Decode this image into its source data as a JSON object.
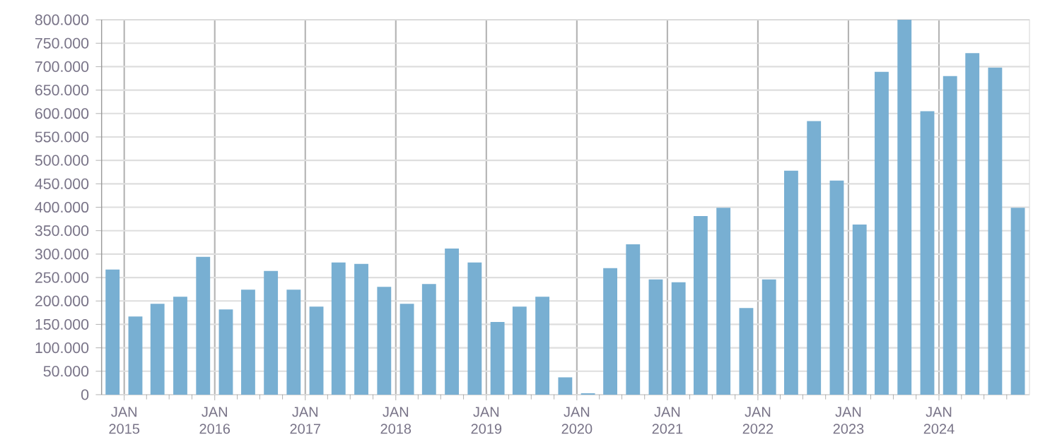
{
  "chart_data": {
    "type": "bar",
    "color": "#78afd2",
    "x": [
      "2014-11-15",
      "2015-02-15",
      "2015-05-15",
      "2015-08-15",
      "2015-11-15",
      "2016-02-15",
      "2016-05-15",
      "2016-08-15",
      "2016-11-15",
      "2017-02-15",
      "2017-05-15",
      "2017-08-15",
      "2017-11-15",
      "2018-02-15",
      "2018-05-15",
      "2018-08-15",
      "2018-11-15",
      "2019-02-15",
      "2019-05-15",
      "2019-08-15",
      "2019-11-15",
      "2020-02-15",
      "2020-05-15",
      "2020-08-15",
      "2020-11-15",
      "2021-02-15",
      "2021-05-15",
      "2021-08-15",
      "2021-11-15",
      "2022-02-15",
      "2022-05-15",
      "2022-08-15",
      "2022-11-15",
      "2023-02-15",
      "2023-05-15",
      "2023-08-15",
      "2023-11-15",
      "2024-02-15",
      "2024-05-15",
      "2024-08-15",
      "2024-11-15"
    ],
    "values": [
      267000,
      167000,
      194000,
      209000,
      294000,
      182000,
      224000,
      264000,
      224000,
      188000,
      282000,
      279000,
      230000,
      194000,
      236000,
      312000,
      282000,
      155000,
      188000,
      209000,
      37000,
      3000,
      270000,
      321000,
      246000,
      240000,
      381000,
      399000,
      185000,
      246000,
      478000,
      584000,
      457000,
      363000,
      689000,
      800000,
      605000,
      680000,
      729000,
      698000,
      399000
    ],
    "xlim": [
      "2014-10-01",
      "2025-01-01"
    ],
    "xticks": [
      {
        "value": "2015-01-01",
        "label": "JAN 2015"
      },
      {
        "value": "2016-01-01",
        "label": "JAN 2016"
      },
      {
        "value": "2017-01-01",
        "label": "JAN 2017"
      },
      {
        "value": "2018-01-01",
        "label": "JAN 2018"
      },
      {
        "value": "2019-01-01",
        "label": "JAN 2019"
      },
      {
        "value": "2020-01-01",
        "label": "JAN 2020"
      },
      {
        "value": "2021-01-01",
        "label": "JAN 2021"
      },
      {
        "value": "2022-01-01",
        "label": "JAN 2022"
      },
      {
        "value": "2023-01-01",
        "label": "JAN 2023"
      },
      {
        "value": "2024-01-01",
        "label": "JAN 2024"
      },
      {
        "value": "2015-04-01",
        "label": null
      },
      {
        "value": "2015-07-01",
        "label": null
      },
      {
        "value": "2015-10-01",
        "label": null
      },
      {
        "value": "2016-04-01",
        "label": null
      },
      {
        "value": "2016-07-01",
        "label": null
      },
      {
        "value": "2016-10-01",
        "label": null
      },
      {
        "value": "2017-04-01",
        "label": null
      },
      {
        "value": "2017-07-01",
        "label": null
      },
      {
        "value": "2017-10-01",
        "label": null
      },
      {
        "value": "2018-04-01",
        "label": null
      },
      {
        "value": "2018-07-01",
        "label": null
      },
      {
        "value": "2018-10-01",
        "label": null
      },
      {
        "value": "2019-04-01",
        "label": null
      },
      {
        "value": "2019-07-01",
        "label": null
      },
      {
        "value": "2019-10-01",
        "label": null
      },
      {
        "value": "2020-04-01",
        "label": null
      },
      {
        "value": "2020-07-01",
        "label": null
      },
      {
        "value": "2020-10-01",
        "label": null
      },
      {
        "value": "2021-04-01",
        "label": null
      },
      {
        "value": "2021-07-01",
        "label": null
      },
      {
        "value": "2021-10-01",
        "label": null
      },
      {
        "value": "2022-04-01",
        "label": null
      },
      {
        "value": "2022-07-01",
        "label": null
      },
      {
        "value": "2022-10-01",
        "label": null
      },
      {
        "value": "2023-04-01",
        "label": null
      },
      {
        "value": "2023-07-01",
        "label": null
      },
      {
        "value": "2023-10-01",
        "label": null
      },
      {
        "value": "2024-04-01",
        "label": null
      },
      {
        "value": "2024-07-01",
        "label": null
      },
      {
        "value": "2024-10-01",
        "label": null
      }
    ],
    "ylim": [
      0,
      800000
    ],
    "yticks": [
      0,
      {
        "value": 50000,
        "label": "50.000"
      },
      {
        "value": 100000,
        "label": "100.000"
      },
      {
        "value": 150000,
        "label": "150.000"
      },
      {
        "value": 200000,
        "label": "200.000"
      },
      {
        "value": 250000,
        "label": "250.000"
      },
      {
        "value": 300000,
        "label": "300.000"
      },
      {
        "value": 350000,
        "label": "350.000"
      },
      {
        "value": 400000,
        "label": "400.000"
      },
      {
        "value": 450000,
        "label": "450.000"
      },
      {
        "value": 500000,
        "label": "500.000"
      },
      {
        "value": 550000,
        "label": "550.000"
      },
      {
        "value": 600000,
        "label": "600.000"
      },
      {
        "value": 650000,
        "label": "650.000"
      },
      {
        "value": 700000,
        "label": "700.000"
      },
      {
        "value": 750000,
        "label": "750.000"
      },
      {
        "value": 800000,
        "label": "800.000"
      }
    ],
    "grid": true
  }
}
